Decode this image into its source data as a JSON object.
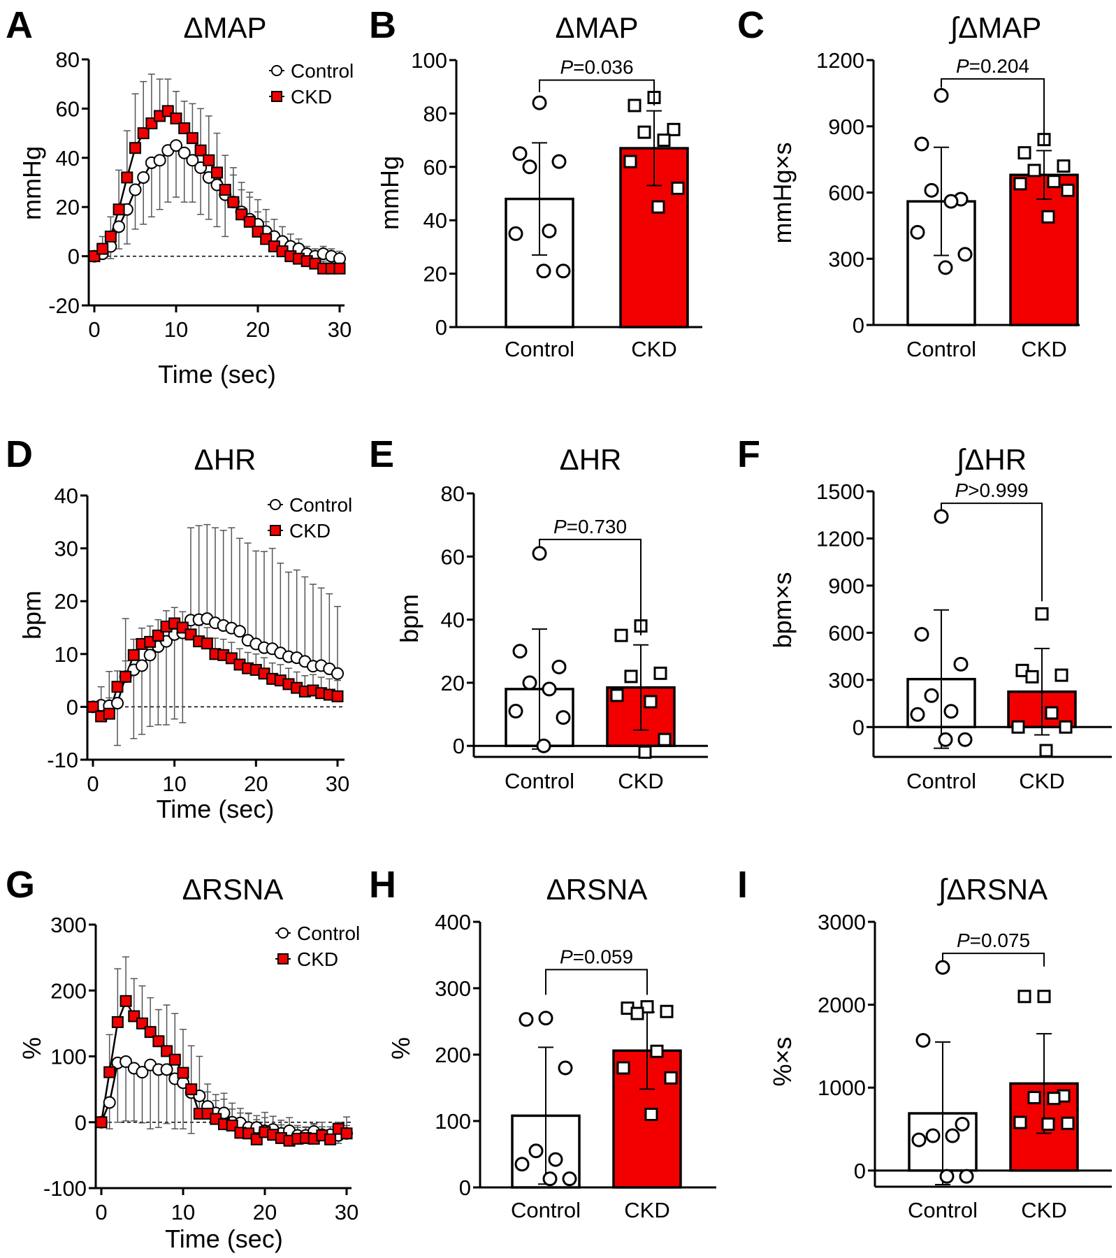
{
  "colors": {
    "control_fill": "#ffffff",
    "ckd_fill": "#f20000",
    "axis": "#000000",
    "error": "#555555"
  },
  "chart_data": [
    {
      "panel": "A",
      "type": "line",
      "title": "ΔMAP",
      "xlabel": "Time (sec)",
      "ylabel": "mmHg",
      "xlim": [
        0,
        30
      ],
      "xticks": [
        0,
        10,
        20,
        30
      ],
      "ylim": [
        -20,
        80
      ],
      "yticks": [
        -20,
        0,
        20,
        40,
        60,
        80
      ],
      "legend": "top-right",
      "series": [
        {
          "name": "Control",
          "values": [
            0,
            1,
            4,
            12,
            19,
            27,
            32,
            38,
            39,
            43,
            45,
            42,
            39,
            36,
            32,
            29,
            25,
            22,
            18,
            15,
            13,
            10,
            8,
            6,
            4,
            3,
            1,
            0,
            1,
            0,
            -1
          ],
          "err": [
            0,
            2,
            5,
            9,
            14,
            16,
            19,
            22,
            20,
            21,
            21,
            20,
            17,
            19,
            17,
            17,
            17,
            14,
            12,
            11,
            10,
            9,
            7,
            6,
            5,
            4,
            3,
            3,
            3,
            3,
            3
          ]
        },
        {
          "name": "CKD",
          "values": [
            0,
            3,
            8,
            19,
            32,
            44,
            50,
            54,
            57,
            59,
            56,
            52,
            48,
            43,
            39,
            34,
            27,
            22,
            17,
            14,
            10,
            7,
            4,
            2,
            0,
            -1,
            -2,
            -3,
            -5,
            -5,
            -5
          ],
          "err": [
            0,
            5,
            8,
            16,
            19,
            22,
            21,
            20,
            15,
            13,
            11,
            11,
            14,
            17,
            18,
            16,
            14,
            11,
            10,
            10,
            8,
            7,
            6,
            5,
            4,
            5,
            5,
            4,
            3,
            4,
            4
          ]
        }
      ]
    },
    {
      "panel": "B",
      "type": "bar",
      "title": "ΔMAP",
      "ylabel": "mmHg",
      "ylim": [
        0,
        100
      ],
      "yticks": [
        0,
        20,
        40,
        60,
        80,
        100
      ],
      "categories": [
        "Control",
        "CKD"
      ],
      "means": [
        48,
        67
      ],
      "sd": [
        21,
        14
      ],
      "points": [
        [
          84,
          65,
          62,
          60,
          36,
          35,
          21,
          21
        ],
        [
          86,
          83,
          74,
          73,
          70,
          62,
          52,
          45
        ]
      ],
      "p_label": {
        "symbol": "P",
        "text": "=0.036"
      },
      "bracket": {
        "y": 92.5,
        "left_end": 88,
        "right_end": 83
      }
    },
    {
      "panel": "C",
      "type": "bar",
      "title": "∫ΔMAP",
      "ylabel": "mmHg×s",
      "ylim": [
        0,
        1200
      ],
      "yticks": [
        0,
        300,
        600,
        900,
        1200
      ],
      "categories": [
        "Control",
        "CKD"
      ],
      "means": [
        560,
        680
      ],
      "sd": [
        245,
        110
      ],
      "points": [
        [
          1040,
          820,
          570,
          610,
          560,
          420,
          320,
          260
        ],
        [
          840,
          780,
          720,
          700,
          650,
          640,
          610,
          490
        ]
      ],
      "p_label": {
        "symbol": "P",
        "text": "=0.204"
      },
      "bracket": {
        "y": 1115,
        "left_end": 1075,
        "right_end": 810
      }
    },
    {
      "panel": "D",
      "type": "line",
      "title": "ΔHR",
      "xlabel": "Time (sec)",
      "ylabel": "bpm",
      "xlim": [
        0,
        30
      ],
      "xticks": [
        0,
        10,
        20,
        30
      ],
      "ylim": [
        -10,
        40
      ],
      "yticks": [
        -10,
        0,
        10,
        20,
        30,
        40
      ],
      "legend": "top-right",
      "series": [
        {
          "name": "Control",
          "values": [
            0,
            0.3,
            0.2,
            0.7,
            5.7,
            7,
            7.8,
            9.8,
            11.4,
            12.4,
            13.7,
            14,
            16.4,
            16.5,
            16.7,
            15.9,
            15.4,
            14.9,
            14.3,
            12.6,
            11.9,
            11.2,
            11,
            10.2,
            9.5,
            9.3,
            8.6,
            7.7,
            7.8,
            7.2,
            6.3
          ],
          "err": [
            0,
            3.5,
            6.5,
            8,
            11,
            13,
            13,
            13.5,
            14.8,
            15.8,
            16,
            17,
            17.5,
            17.8,
            17.8,
            18,
            18,
            19,
            17.6,
            18.4,
            17.6,
            18.2,
            19,
            17,
            16,
            16.6,
            16,
            15.5,
            14.7,
            14.2,
            12.7
          ]
        },
        {
          "name": "CKD",
          "values": [
            0,
            -1.8,
            -1.3,
            3.8,
            5.7,
            9.8,
            11.9,
            12.3,
            13.5,
            15.2,
            15.8,
            15,
            13.7,
            12.4,
            12,
            10,
            9.8,
            9.2,
            8,
            7.3,
            7,
            6.3,
            5.3,
            5,
            4.3,
            3.6,
            2.9,
            3.1,
            2.6,
            2.3,
            2.0
          ],
          "err": [
            0,
            2,
            3,
            3,
            3,
            3,
            3,
            3,
            3,
            3,
            3,
            3,
            3,
            3,
            3,
            3,
            3,
            3,
            3,
            3,
            3,
            3,
            3,
            3,
            3,
            3,
            3,
            3,
            3,
            3,
            3
          ]
        }
      ]
    },
    {
      "panel": "E",
      "type": "bar",
      "title": "ΔHR",
      "ylabel": "bpm",
      "ylim": [
        -3.5,
        80
      ],
      "yticks": [
        0,
        20,
        40,
        60,
        80
      ],
      "categories": [
        "Control",
        "CKD"
      ],
      "means": [
        18,
        18.5
      ],
      "sd": [
        19,
        13.5
      ],
      "points": [
        [
          61,
          30,
          25,
          20,
          18,
          11,
          9,
          0
        ],
        [
          38,
          35,
          23,
          22,
          14,
          16,
          2,
          -2
        ]
      ],
      "p_label": {
        "symbol": "P",
        "text": "=0.730"
      },
      "bracket": {
        "y": 65.4,
        "left_end": 63,
        "right_end": 35
      }
    },
    {
      "panel": "F",
      "type": "bar",
      "title": "∫ΔHR",
      "ylabel": "bpm×s",
      "ylim": [
        -190,
        1500
      ],
      "yticks": [
        0,
        300,
        600,
        900,
        1200,
        1500
      ],
      "categories": [
        "Control",
        "CKD"
      ],
      "means": [
        305,
        225
      ],
      "sd": [
        440,
        275
      ],
      "points": [
        [
          1340,
          590,
          400,
          200,
          100,
          80,
          -80,
          -80
        ],
        [
          720,
          360,
          330,
          320,
          90,
          0,
          0,
          -150
        ]
      ],
      "p_label": {
        "symbol": "P",
        "text": ">0.999"
      },
      "bracket": {
        "y": 1424,
        "left_end": 1380,
        "right_end": 800
      }
    },
    {
      "panel": "G",
      "type": "line",
      "title": "ΔRSNA",
      "xlabel": "Time (sec)",
      "ylabel": "%",
      "xlim": [
        0,
        30
      ],
      "xticks": [
        0,
        10,
        20,
        30
      ],
      "ylim": [
        -100,
        300
      ],
      "yticks": [
        -100,
        0,
        100,
        200,
        300
      ],
      "legend": "top-right",
      "series": [
        {
          "name": "Control",
          "values": [
            0,
            30,
            90,
            92,
            82,
            76,
            87,
            80,
            80,
            66,
            60,
            45,
            40,
            24,
            14,
            14,
            0,
            -1,
            -8,
            -8,
            -13,
            -11,
            -17,
            -13,
            -20,
            -20,
            -14,
            -19,
            -19,
            -20,
            -17
          ],
          "err": [
            0,
            40,
            90,
            90,
            80,
            77,
            97,
            88,
            82,
            76,
            70,
            62,
            60,
            34,
            28,
            30,
            20,
            22,
            22,
            18,
            20,
            20,
            20,
            20,
            12,
            12,
            12,
            12,
            12,
            12,
            12
          ]
        },
        {
          "name": "CKD",
          "values": [
            0,
            76,
            152,
            184,
            161,
            150,
            137,
            123,
            108,
            95,
            75,
            50,
            13,
            13,
            5,
            -3,
            -5,
            -16,
            -17,
            -26,
            -15,
            -19,
            -24,
            -28,
            -25,
            -24,
            -25,
            -20,
            -26,
            -10,
            -17
          ],
          "err": [
            0,
            57,
            81,
            67,
            57,
            57,
            52,
            48,
            70,
            70,
            66,
            66,
            33,
            33,
            28,
            38,
            34,
            30,
            30,
            30,
            30,
            28,
            20,
            18,
            20,
            17,
            22,
            20,
            14,
            10,
            25
          ]
        }
      ]
    },
    {
      "panel": "H",
      "type": "bar",
      "title": "ΔRSNA",
      "ylabel": "%",
      "ylim": [
        0,
        400
      ],
      "yticks": [
        0,
        100,
        200,
        300,
        400
      ],
      "categories": [
        "Control",
        "CKD"
      ],
      "means": [
        108,
        206
      ],
      "sd": [
        103,
        58
      ],
      "points": [
        [
          255,
          253,
          180,
          55,
          42,
          35,
          13,
          13
        ],
        [
          272,
          270,
          265,
          262,
          205,
          180,
          165,
          110
        ]
      ],
      "p_label": {
        "symbol": "P",
        "text": "=0.059"
      },
      "bracket": {
        "y": 328,
        "left_end": 290,
        "right_end": 290
      }
    },
    {
      "panel": "I",
      "type": "bar",
      "title": "∫ΔRSNA",
      "ylabel": "%×s",
      "ylim": [
        -195,
        3000
      ],
      "yticks": [
        0,
        1000,
        2000,
        3000
      ],
      "categories": [
        "Control",
        "CKD"
      ],
      "means": [
        690,
        1050
      ],
      "sd": [
        860,
        600
      ],
      "points": [
        [
          2450,
          1570,
          560,
          420,
          420,
          370,
          -70,
          -70
        ],
        [
          2100,
          2100,
          900,
          880,
          870,
          580,
          570,
          560
        ]
      ],
      "p_label": {
        "symbol": "P",
        "text": "=0.075"
      },
      "bracket": {
        "y": 2620,
        "left_end": 2520,
        "right_end": 2460
      }
    }
  ]
}
